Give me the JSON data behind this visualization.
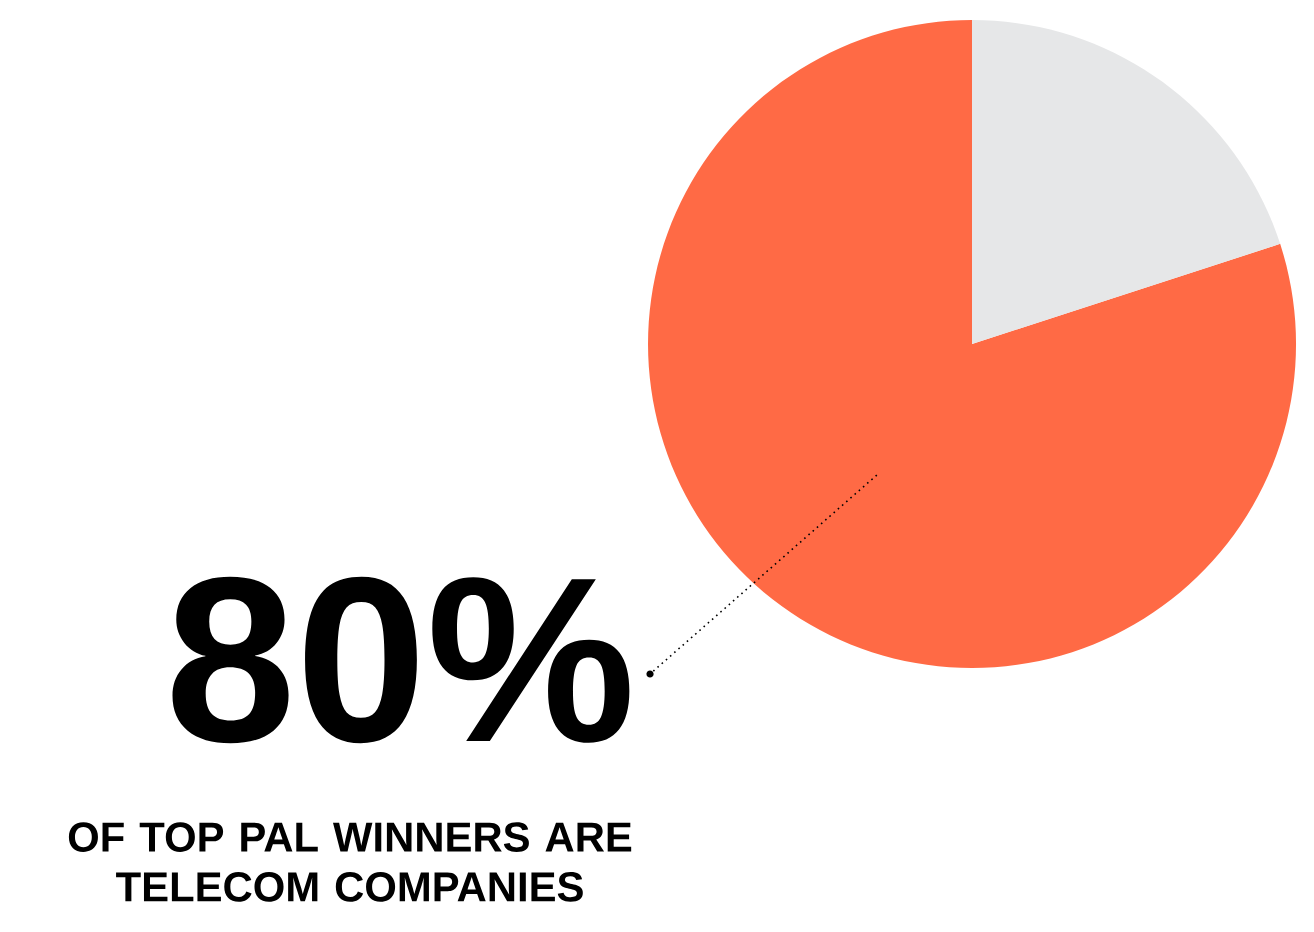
{
  "chart_data": {
    "type": "pie",
    "categories": [
      null,
      null
    ],
    "values": [
      80,
      20
    ],
    "colors": [
      "#ff6a45",
      "#e6e7e8"
    ],
    "value_labels": [
      "80%",
      null
    ],
    "annotations": [
      "OF TOP PAL WINNERS ARE TELECOM COMPANIES"
    ]
  }
}
